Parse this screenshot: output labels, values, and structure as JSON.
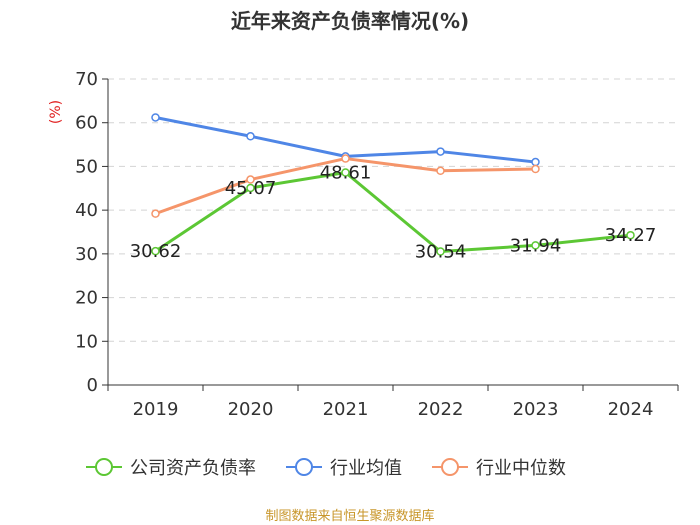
{
  "chart_data": {
    "type": "line",
    "title": "近年来资产负债率情况(%)",
    "ylabel": "(%)",
    "xlabel": "",
    "categories": [
      "2019",
      "2020",
      "2021",
      "2022",
      "2023",
      "2024"
    ],
    "ylim": [
      0,
      70
    ],
    "yticks": [
      0,
      10,
      20,
      30,
      40,
      50,
      60,
      70
    ],
    "grid": true,
    "legend_position": "bottom",
    "series": [
      {
        "name": "公司资产负债率",
        "color": "#5cc734",
        "values": [
          30.62,
          45.07,
          48.61,
          30.54,
          31.94,
          34.27
        ],
        "show_labels": true
      },
      {
        "name": "行业均值",
        "color": "#4f86e6",
        "values": [
          61.2,
          56.9,
          52.3,
          53.4,
          51.0,
          null
        ],
        "show_labels": false
      },
      {
        "name": "行业中位数",
        "color": "#f5956a",
        "values": [
          39.2,
          47.0,
          51.8,
          49.0,
          49.4,
          null
        ],
        "show_labels": false
      }
    ],
    "source": "制图数据来自恒生聚源数据库"
  }
}
